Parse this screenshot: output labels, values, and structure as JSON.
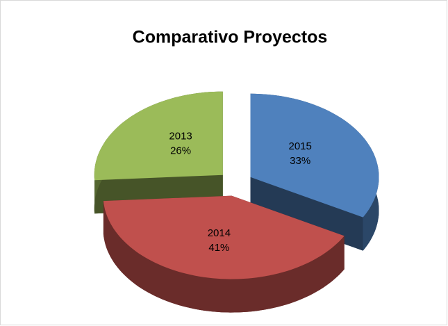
{
  "chart_data": {
    "type": "pie",
    "title": "Comparativo Proyectos",
    "categories": [
      "2015",
      "2014",
      "2013"
    ],
    "values": [
      33,
      41,
      26
    ],
    "value_labels": [
      "33%",
      "41%",
      "26%"
    ],
    "colors": [
      "#4f81bd",
      "#c0504d",
      "#9bbb59"
    ],
    "three_d": true,
    "exploded": true
  }
}
